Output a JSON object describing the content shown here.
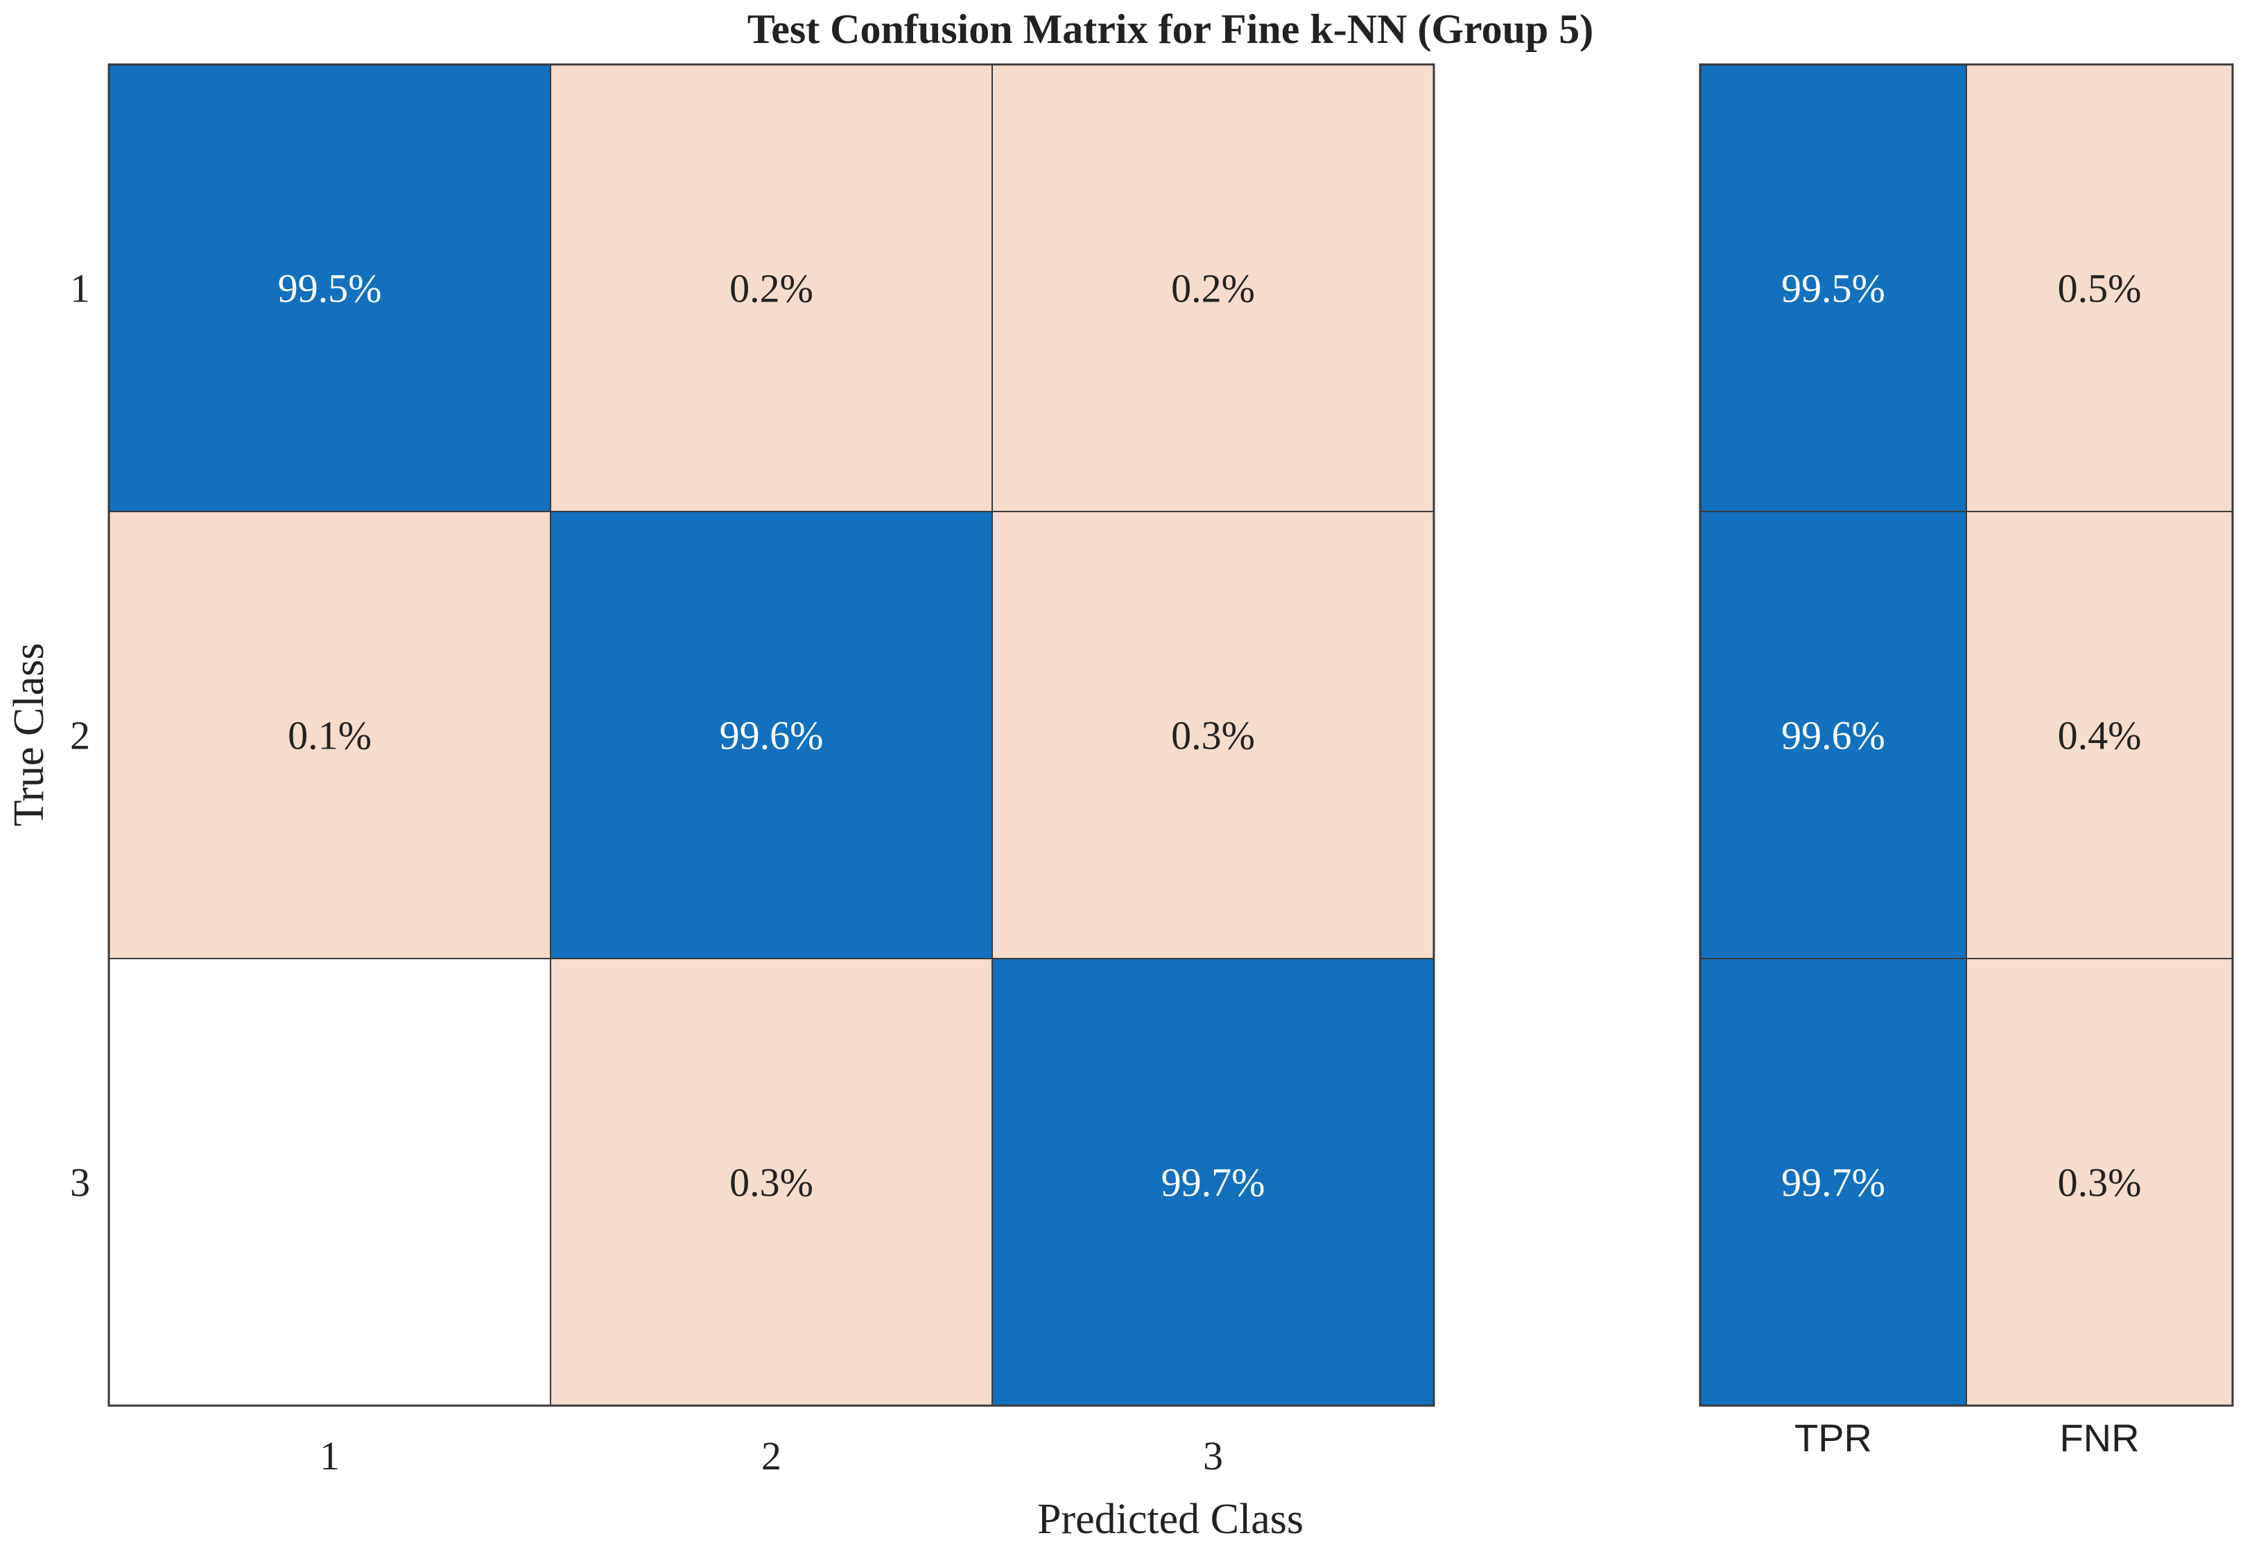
{
  "chart_data": {
    "type": "heatmap",
    "title": "Test Confusion Matrix for Fine k-NN (Group 5)",
    "xlabel": "Predicted Class",
    "ylabel": "True Class",
    "row_labels": [
      "1",
      "2",
      "3"
    ],
    "col_labels": [
      "1",
      "2",
      "3"
    ],
    "cells": [
      [
        99.5,
        0.2,
        0.2
      ],
      [
        0.1,
        99.6,
        0.3
      ],
      [
        null,
        0.3,
        99.7
      ]
    ],
    "summary": {
      "columns": [
        "TPR",
        "FNR"
      ],
      "values": [
        [
          99.5,
          0.5
        ],
        [
          99.6,
          0.4
        ],
        [
          99.7,
          0.3
        ]
      ]
    },
    "value_suffix": "%",
    "colors": {
      "diagonal": "#1270BE",
      "off_diagonal": "#F6DCCC",
      "empty": "#FFFFFF",
      "grid": "#3A3A3A",
      "text_on_dark": "#FFFFFF",
      "text_on_light": "#222222"
    }
  }
}
